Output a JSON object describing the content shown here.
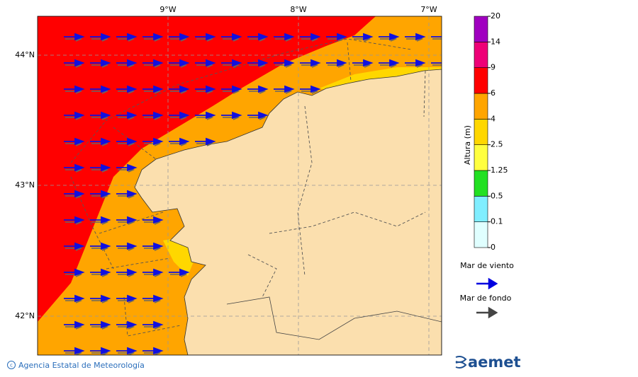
{
  "map": {
    "lon_labels": [
      "9°W",
      "8°W",
      "7°W"
    ],
    "lat_labels": [
      "44°N",
      "43°N",
      "42°N"
    ]
  },
  "colorbar": {
    "label": "Altura (m)",
    "ticks": [
      0,
      0.1,
      0.5,
      1.25,
      2.5,
      4,
      6,
      9,
      14,
      20
    ],
    "colors": [
      "#e0ffff",
      "#80eeff",
      "#22e022",
      "#ffff40",
      "#ffd700",
      "#ffa500",
      "#ff0000",
      "#ee0077",
      "#a000c0"
    ]
  },
  "legend": {
    "wind_sea": "Mar de viento",
    "swell": "Mar de fondo"
  },
  "footer": {
    "credit": "Agencia Estatal de Meteorología",
    "logo": "aemet"
  }
}
